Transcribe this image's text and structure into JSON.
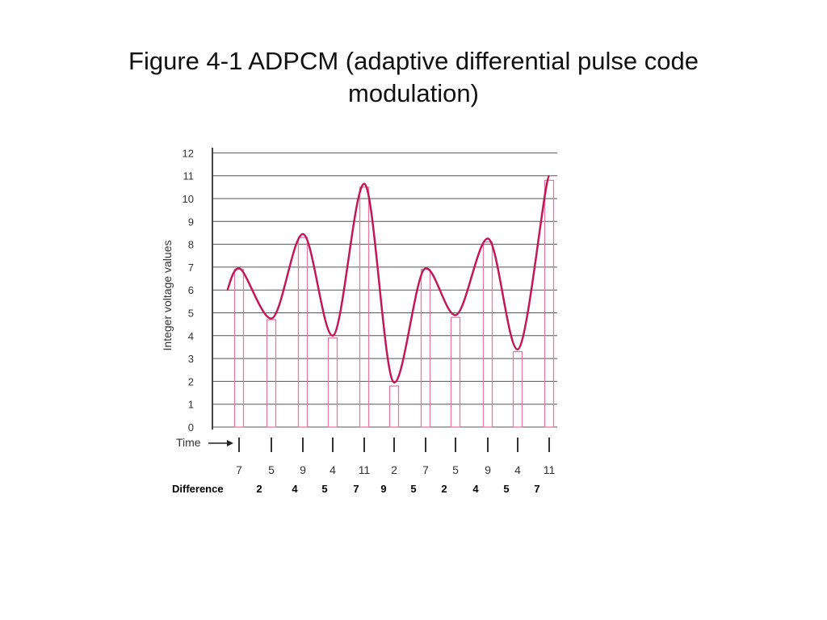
{
  "slide": {
    "title_line1": "Figure 4-1 ADPCM (adaptive differential pulse code",
    "title_line2": "modulation)"
  },
  "chart_data": {
    "type": "line",
    "title": "",
    "ylabel": "Integer voltage values",
    "xlabel": "Time",
    "ylim": [
      0,
      12
    ],
    "yticks": [
      0,
      1,
      2,
      3,
      4,
      5,
      6,
      7,
      8,
      9,
      10,
      11,
      12
    ],
    "grid": true,
    "sample_values": [
      7,
      5,
      9,
      4,
      11,
      2,
      7,
      5,
      9,
      4,
      11
    ],
    "sample_bar_heights": [
      6.9,
      4.7,
      8.3,
      3.9,
      10.5,
      1.8,
      6.9,
      4.8,
      8.1,
      3.3,
      10.8
    ],
    "curve_peaks": [
      6.0,
      6.95,
      4.75,
      8.45,
      4.0,
      10.65,
      1.95,
      6.95,
      4.9,
      8.25,
      3.4,
      11.0
    ],
    "difference_label": "Difference",
    "difference_values": [
      2,
      4,
      5,
      7,
      9,
      5,
      2,
      4,
      5,
      7
    ],
    "colors": {
      "waveform": "#c2185b",
      "sample_bar": "#e57aa0",
      "grid": "#555555"
    }
  }
}
